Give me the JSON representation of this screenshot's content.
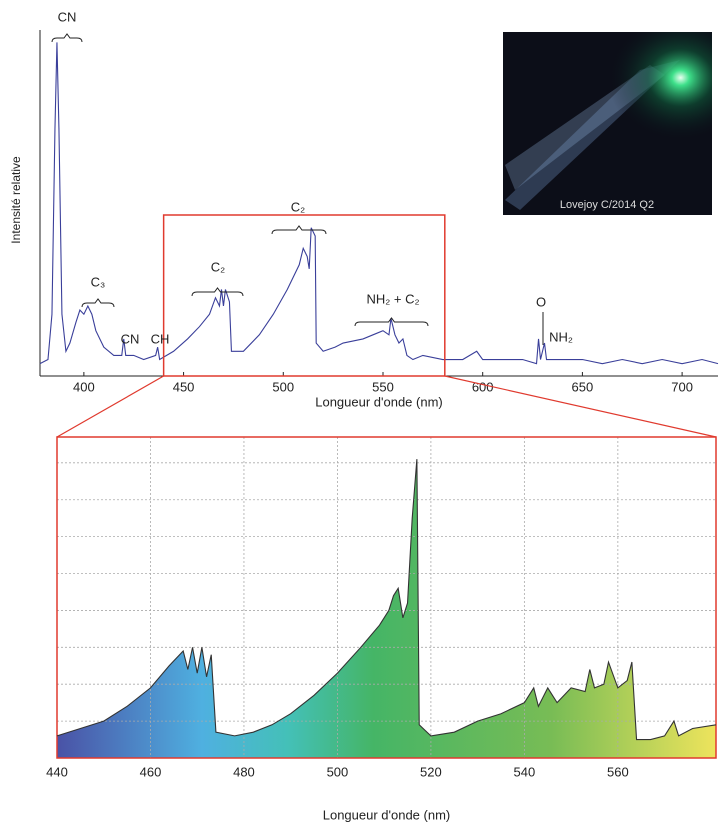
{
  "chart_data": [
    {
      "type": "line",
      "xlabel": "Longueur d'onde (nm)",
      "ylabel": "Intensité relative",
      "color": "#3a3f9a",
      "xlim": [
        378,
        718
      ],
      "xticks": [
        400,
        450,
        500,
        550,
        600,
        650,
        700
      ],
      "ylim": [
        0,
        8.4
      ],
      "annotations": [
        "CN",
        "C₃",
        "CN",
        "CH",
        "C₂",
        "C₂",
        "NH₂ + C₂",
        "O",
        "NH₂"
      ],
      "inset_caption": "Lovejoy C/2014 Q2",
      "x": [
        378,
        382,
        384,
        385.5,
        386.5,
        387.5,
        389,
        391,
        393,
        396,
        398,
        400,
        402,
        404,
        406,
        410,
        415,
        419,
        420,
        421,
        425,
        430,
        436,
        437,
        438,
        445,
        452,
        458,
        463,
        466,
        468,
        469,
        470,
        471,
        473,
        474,
        480,
        488,
        495,
        502,
        508,
        510,
        512,
        513,
        514,
        516,
        516.5,
        520,
        526,
        530,
        540,
        545,
        550,
        553,
        554,
        556,
        558,
        560,
        562,
        565,
        570,
        580,
        590,
        597,
        600,
        610,
        620,
        627,
        628,
        629,
        631,
        632,
        640,
        650,
        660,
        670,
        680,
        690,
        700,
        710,
        718
      ],
      "values": [
        0.3,
        0.4,
        1.5,
        6,
        8.1,
        6,
        1.5,
        0.6,
        0.8,
        1.3,
        1.6,
        1.5,
        1.7,
        1.5,
        1.1,
        0.7,
        0.5,
        0.5,
        0.9,
        0.5,
        0.5,
        0.4,
        0.5,
        0.7,
        0.4,
        0.6,
        0.9,
        1.2,
        1.5,
        1.9,
        1.7,
        2.1,
        1.7,
        2.1,
        1.8,
        0.6,
        0.6,
        1.0,
        1.5,
        2.1,
        2.7,
        3.1,
        2.9,
        2.6,
        3.6,
        3.4,
        0.8,
        0.6,
        0.7,
        0.8,
        0.9,
        1.0,
        1.1,
        1.0,
        1.4,
        1.0,
        0.8,
        0.9,
        0.5,
        0.4,
        0.5,
        0.4,
        0.4,
        0.6,
        0.4,
        0.4,
        0.4,
        0.3,
        0.9,
        0.4,
        0.8,
        0.4,
        0.4,
        0.4,
        0.3,
        0.4,
        0.3,
        0.4,
        0.3,
        0.4,
        0.3
      ]
    },
    {
      "type": "area",
      "xlabel": "Longueur d'onde (nm)",
      "color": "#333333",
      "xlim": [
        440,
        581
      ],
      "xticks": [
        440,
        460,
        480,
        500,
        520,
        540,
        560
      ],
      "ylim": [
        0,
        8.7
      ],
      "yticks": [
        0,
        1,
        2,
        3,
        4,
        5,
        6,
        7,
        8
      ],
      "grid": true,
      "x": [
        440,
        445,
        450,
        455,
        460,
        464,
        467,
        468,
        469,
        470,
        471,
        472,
        473,
        474,
        478,
        482,
        486,
        490,
        495,
        500,
        505,
        509,
        511,
        512,
        513,
        514,
        515,
        516,
        517,
        517.5,
        520,
        525,
        530,
        535,
        540,
        542,
        543,
        545,
        547,
        550,
        553,
        554,
        555,
        557,
        558,
        560,
        562,
        563,
        564,
        567,
        570,
        572,
        573,
        576,
        581
      ],
      "values": [
        0.6,
        0.8,
        1.0,
        1.4,
        1.9,
        2.5,
        2.9,
        2.4,
        3.0,
        2.3,
        3.0,
        2.2,
        2.8,
        0.7,
        0.6,
        0.7,
        0.9,
        1.2,
        1.7,
        2.3,
        3.0,
        3.6,
        4.0,
        4.4,
        4.6,
        3.8,
        4.2,
        6.5,
        8.1,
        0.9,
        0.6,
        0.7,
        1.0,
        1.2,
        1.5,
        1.9,
        1.4,
        1.9,
        1.5,
        1.9,
        1.8,
        2.4,
        1.9,
        2.0,
        2.6,
        1.9,
        2.1,
        2.6,
        0.5,
        0.5,
        0.6,
        1.0,
        0.6,
        0.8,
        0.9
      ]
    }
  ]
}
